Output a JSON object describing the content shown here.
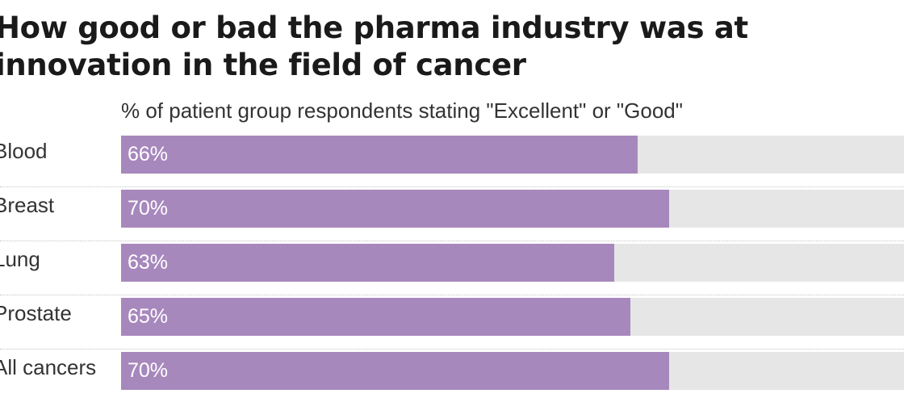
{
  "chart_data": {
    "type": "bar",
    "orientation": "horizontal",
    "title": "How good or bad the pharma industry was at innovation in the field of cancer",
    "subtitle": "% of patient group respondents stating \"Excellent\" or \"Good\"",
    "categories": [
      "Blood",
      "Breast",
      "Lung",
      "Prostate",
      "All cancers"
    ],
    "values": [
      66,
      70,
      63,
      65,
      70
    ],
    "value_labels": [
      "66%",
      "70%",
      "63%",
      "65%",
      "70%"
    ],
    "xlim": [
      0,
      100
    ],
    "grid": false,
    "legend": "none",
    "colors": {
      "bar": "#a788bd",
      "track": "#e6e6e6",
      "value_text": "#ffffff"
    }
  }
}
